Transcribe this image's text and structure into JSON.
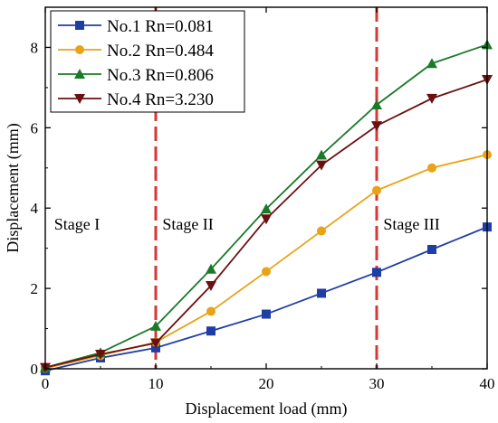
{
  "chart_data": {
    "type": "line",
    "xlabel": "Displacement load (mm)",
    "ylabel": "Displacement (mm)",
    "xlim": [
      0,
      40
    ],
    "ylim": [
      0,
      9
    ],
    "xticks": [
      0,
      10,
      20,
      30,
      40
    ],
    "yticks": [
      0,
      2,
      4,
      6,
      8
    ],
    "grid": false,
    "legend_position": "top-left",
    "x": [
      0,
      5,
      10,
      15,
      20,
      25,
      30,
      35,
      40
    ],
    "series": [
      {
        "name": "No.1 Rn=0.081",
        "color": "#1f3ea3",
        "marker": "square",
        "values": [
          -0.05,
          0.27,
          0.52,
          0.94,
          1.36,
          1.88,
          2.4,
          2.97,
          3.53
        ]
      },
      {
        "name": "No.2 Rn=0.484",
        "color": "#e8a317",
        "marker": "circle",
        "values": [
          0.01,
          0.33,
          0.66,
          1.43,
          2.42,
          3.43,
          4.44,
          5.0,
          5.33
        ]
      },
      {
        "name": "No.3 Rn=0.806",
        "color": "#1a7a2a",
        "marker": "triangle-up",
        "values": [
          0.03,
          0.4,
          1.06,
          2.48,
          3.98,
          5.32,
          6.57,
          7.6,
          8.07
        ]
      },
      {
        "name": "No.4 Rn=3.230",
        "color": "#6b1010",
        "marker": "triangle-down",
        "values": [
          0.03,
          0.36,
          0.64,
          2.07,
          3.73,
          5.07,
          6.05,
          6.73,
          7.2
        ]
      }
    ],
    "stage_lines": {
      "color": "#d93636",
      "x": [
        10,
        30
      ]
    },
    "annotations": [
      {
        "text": "Stage I",
        "x": 0.8,
        "y": 3.6
      },
      {
        "text": "Stage II",
        "x": 10.6,
        "y": 3.6
      },
      {
        "text": "Stage III",
        "x": 30.6,
        "y": 3.6
      }
    ]
  }
}
